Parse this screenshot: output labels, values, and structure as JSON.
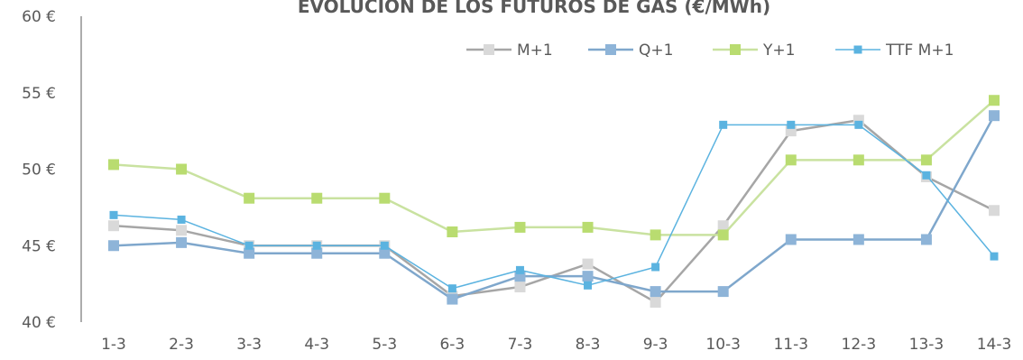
{
  "chart_data": {
    "type": "line",
    "title": "EVOLUCIÓN DE LOS FUTUROS DE GAS (€/MWh)",
    "categories": [
      "1-3",
      "2-3",
      "3-3",
      "4-3",
      "5-3",
      "6-3",
      "7-3",
      "8-3",
      "9-3",
      "10-3",
      "11-3",
      "12-3",
      "13-3",
      "14-3"
    ],
    "ylim": [
      40,
      60
    ],
    "yticks": [
      40,
      45,
      50,
      55,
      60
    ],
    "ytick_labels": [
      "40 €",
      "45 €",
      "50 €",
      "55 €",
      "60 €"
    ],
    "legend_position": "top-right",
    "grid": false,
    "series": [
      {
        "name": "M+1",
        "color": "#a6a6a6",
        "marker_color": "#d9d9d9",
        "line_width": 2.5,
        "values": [
          46.3,
          46.0,
          45.0,
          45.0,
          45.0,
          41.7,
          42.3,
          43.8,
          41.3,
          46.3,
          52.5,
          53.2,
          49.5,
          47.3
        ]
      },
      {
        "name": "Q+1",
        "color": "#7fa7cc",
        "marker_color": "#8eb4d8",
        "line_width": 2.5,
        "values": [
          45.0,
          45.2,
          44.5,
          44.5,
          44.5,
          41.5,
          43.0,
          43.0,
          42.0,
          42.0,
          45.4,
          45.4,
          45.4,
          53.5
        ]
      },
      {
        "name": "Y+1",
        "color": "#c9e2a0",
        "marker_color": "#b9dc70",
        "line_width": 2.5,
        "values": [
          50.3,
          50.0,
          48.1,
          48.1,
          48.1,
          45.9,
          46.2,
          46.2,
          45.7,
          45.7,
          50.6,
          50.6,
          50.6,
          54.5
        ]
      },
      {
        "name": "TTF M+1",
        "color": "#5bb3e0",
        "marker_color": "#5bb3e0",
        "line_width": 1.5,
        "values": [
          47.0,
          46.7,
          45.0,
          45.0,
          45.0,
          42.2,
          43.4,
          42.4,
          43.6,
          52.9,
          52.9,
          52.9,
          49.6,
          44.3
        ]
      }
    ]
  }
}
